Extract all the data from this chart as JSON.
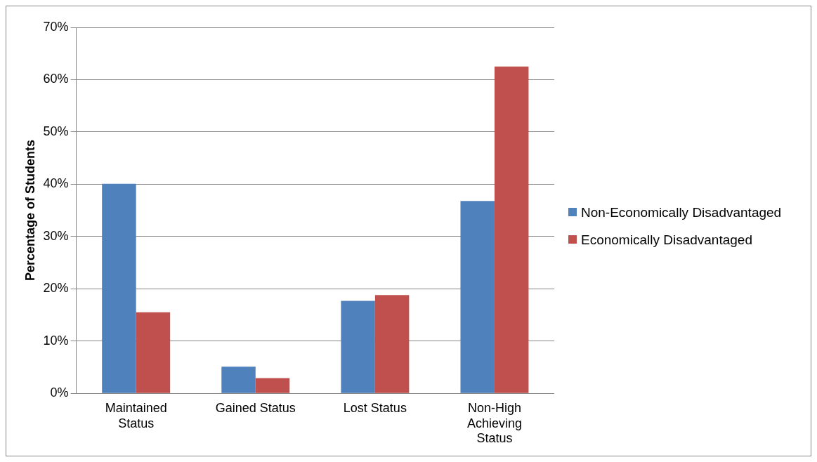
{
  "chart_data": {
    "type": "bar",
    "ylabel": "Percentage of Students",
    "categories": [
      "Maintained Status",
      "Gained Status",
      "Lost Status",
      "Non-High Achieving Status"
    ],
    "series": [
      {
        "name": "Non-Economically Disadvantaged",
        "color": "#4f81bd",
        "values": [
          40.1,
          5.1,
          17.7,
          36.8
        ]
      },
      {
        "name": "Economically Disadvantaged",
        "color": "#c0504d",
        "values": [
          15.5,
          2.9,
          18.8,
          62.5
        ]
      }
    ],
    "ylim": [
      0,
      70
    ],
    "yticks": [
      {
        "value": 0,
        "label": "0%"
      },
      {
        "value": 10,
        "label": "10%"
      },
      {
        "value": 20,
        "label": "20%"
      },
      {
        "value": 30,
        "label": "30%"
      },
      {
        "value": 40,
        "label": "40%"
      },
      {
        "value": 50,
        "label": "50%"
      },
      {
        "value": 60,
        "label": "60%"
      },
      {
        "value": 70,
        "label": "70%"
      }
    ],
    "grid": "y",
    "legend": "right"
  }
}
